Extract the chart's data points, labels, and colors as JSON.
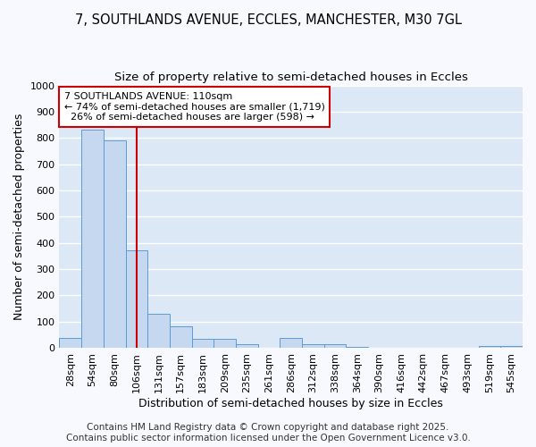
{
  "title_line1": "7, SOUTHLANDS AVENUE, ECCLES, MANCHESTER, M30 7GL",
  "title_line2": "Size of property relative to semi-detached houses in Eccles",
  "xlabel": "Distribution of semi-detached houses by size in Eccles",
  "ylabel": "Number of semi-detached properties",
  "categories": [
    "28sqm",
    "54sqm",
    "80sqm",
    "106sqm",
    "131sqm",
    "157sqm",
    "183sqm",
    "209sqm",
    "235sqm",
    "261sqm",
    "286sqm",
    "312sqm",
    "338sqm",
    "364sqm",
    "390sqm",
    "416sqm",
    "442sqm",
    "467sqm",
    "493sqm",
    "519sqm",
    "545sqm"
  ],
  "values": [
    37,
    830,
    790,
    370,
    128,
    83,
    35,
    35,
    14,
    0,
    37,
    14,
    14,
    4,
    0,
    0,
    0,
    0,
    0,
    5,
    5
  ],
  "bar_color": "#c5d8f0",
  "bar_edge_color": "#5b9bd5",
  "bar_linewidth": 0.7,
  "red_line_label": "7 SOUTHLANDS AVENUE: 110sqm",
  "pct_smaller": 74,
  "count_smaller": 1719,
  "pct_larger": 26,
  "count_larger": 598,
  "annotation_box_color": "#ffffff",
  "annotation_box_edge": "#cc0000",
  "ylim": [
    0,
    1000
  ],
  "yticks": [
    0,
    100,
    200,
    300,
    400,
    500,
    600,
    700,
    800,
    900,
    1000
  ],
  "fig_bg_color": "#f8f9ff",
  "plot_bg_color": "#dce8f5",
  "grid_color": "#ffffff",
  "title_fontsize": 10.5,
  "subtitle_fontsize": 9.5,
  "axis_label_fontsize": 9,
  "tick_fontsize": 8,
  "annotation_fontsize": 8,
  "footer_fontsize": 7.5,
  "footer_line1": "Contains HM Land Registry data © Crown copyright and database right 2025.",
  "footer_line2": "Contains public sector information licensed under the Open Government Licence v3.0."
}
